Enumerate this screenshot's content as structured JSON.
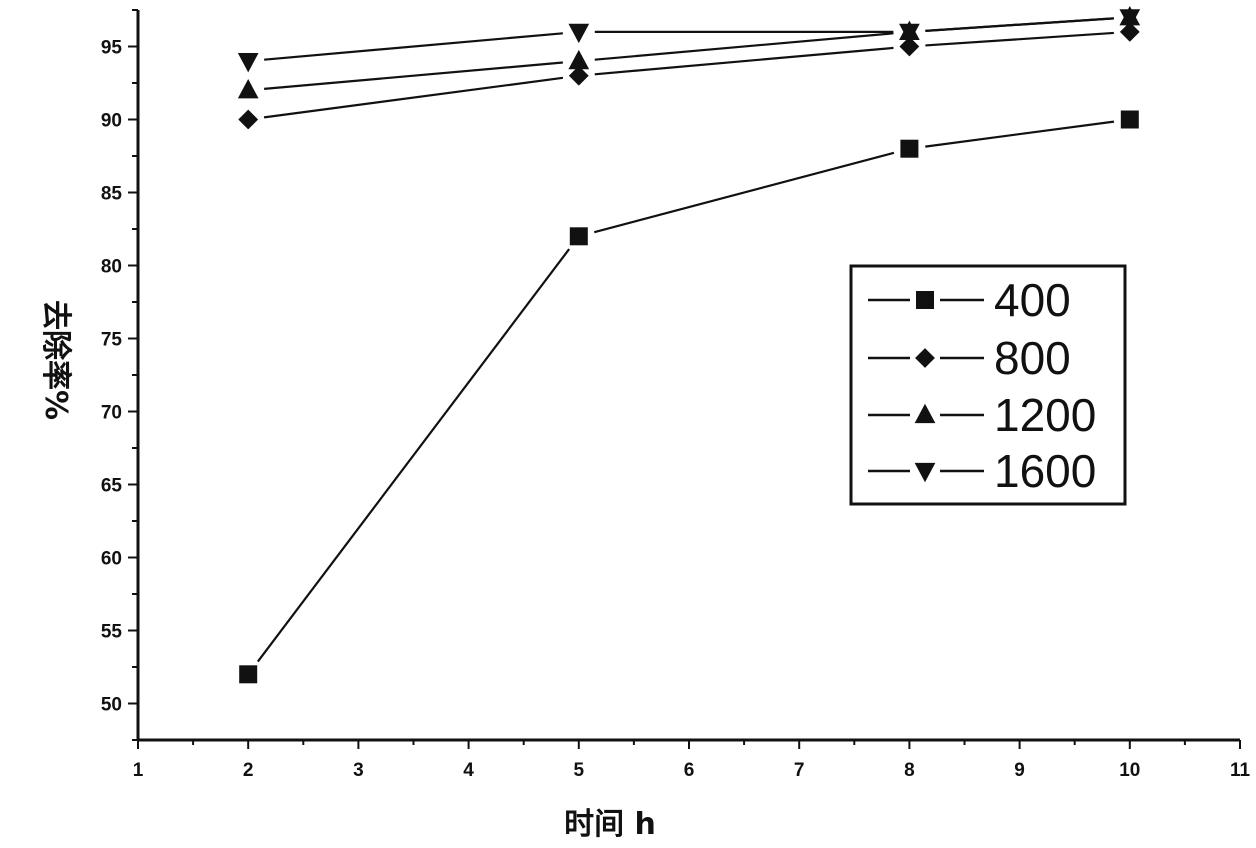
{
  "chart_data": {
    "type": "line",
    "xlabel": "时间 h",
    "ylabel": "去除率%",
    "xlim": [
      1,
      11
    ],
    "ylim": [
      47.5,
      97.5
    ],
    "x_ticks": [
      1,
      2,
      3,
      4,
      5,
      6,
      7,
      8,
      9,
      10,
      11
    ],
    "x_tick_labels": [
      "1",
      "2",
      "3",
      "4",
      "5",
      "6",
      "7",
      "8",
      "9",
      "10",
      "11"
    ],
    "y_ticks": [
      50,
      55,
      60,
      65,
      70,
      75,
      80,
      85,
      90,
      95
    ],
    "y_tick_labels": [
      "50",
      "55",
      "60",
      "65",
      "70",
      "75",
      "80",
      "85",
      "90",
      "95"
    ],
    "grid": false,
    "legend_position": "center-right",
    "series": [
      {
        "name": "400",
        "marker": "square",
        "color": "#111111",
        "x": [
          2,
          5,
          8,
          10
        ],
        "y": [
          52,
          82,
          88,
          90
        ]
      },
      {
        "name": "800",
        "marker": "diamond",
        "color": "#111111",
        "x": [
          2,
          5,
          8,
          10
        ],
        "y": [
          90,
          93,
          95,
          96
        ]
      },
      {
        "name": "1200",
        "marker": "triangle-up",
        "color": "#111111",
        "x": [
          2,
          5,
          8,
          10
        ],
        "y": [
          92,
          94,
          96,
          97
        ]
      },
      {
        "name": "1600",
        "marker": "triangle-down",
        "color": "#111111",
        "x": [
          2,
          5,
          8,
          10
        ],
        "y": [
          94,
          96,
          96,
          97
        ]
      }
    ]
  }
}
